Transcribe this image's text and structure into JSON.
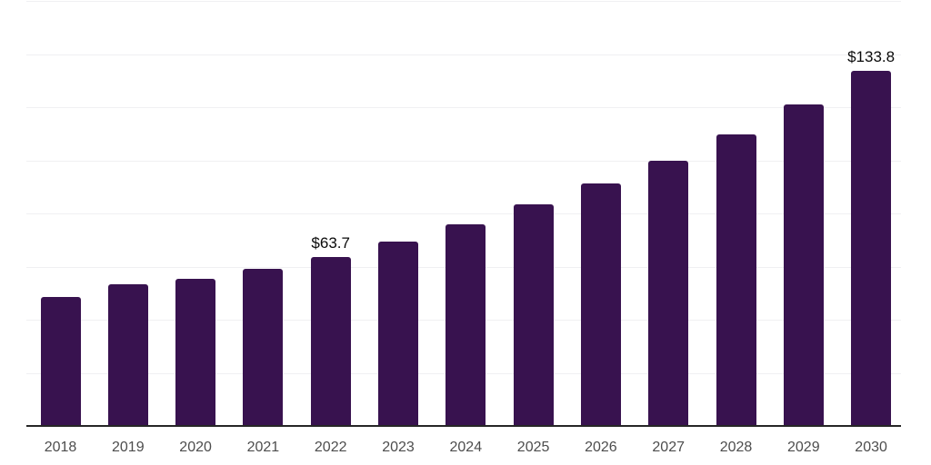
{
  "chart_data": {
    "type": "bar",
    "title": "",
    "xlabel": "",
    "ylabel": "",
    "categories": [
      "2018",
      "2019",
      "2020",
      "2021",
      "2022",
      "2023",
      "2024",
      "2025",
      "2026",
      "2027",
      "2028",
      "2029",
      "2030"
    ],
    "values": [
      48.4,
      53.3,
      55.4,
      59.1,
      63.7,
      69.4,
      75.9,
      83.4,
      91.3,
      99.8,
      109.7,
      121.0,
      133.8
    ],
    "labeled_points": [
      {
        "index": 4,
        "label": "$63.7"
      },
      {
        "index": 12,
        "label": "$133.8"
      }
    ],
    "value_prefix": "$",
    "ylim": [
      0,
      160
    ],
    "gridline_step": 20,
    "grid": "horizontal-only",
    "legend_position": "none",
    "y_axis_ticks_visible": false,
    "colors": {
      "bar": "#38124F",
      "gridline": "#f0f0f2",
      "axis_line": "#262626",
      "tick_label": "#4d4d4d",
      "data_label": "#0a0a0a",
      "background": "#ffffff"
    }
  }
}
